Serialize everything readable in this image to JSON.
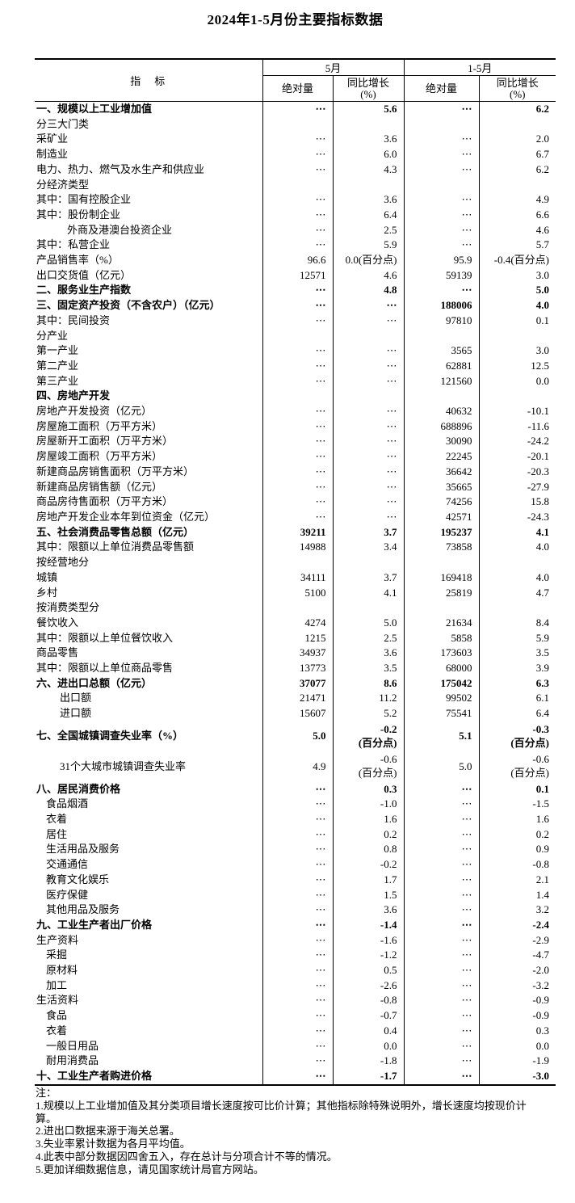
{
  "title": "2024年1-5月份主要指标数据",
  "colors": {
    "background": "#ffffff",
    "text": "#000000",
    "border": "#000000"
  },
  "table": {
    "header": {
      "indicator": "指　标",
      "may": "5月",
      "jan_may": "1-5月",
      "absolute": "绝对量",
      "yoy": "同比增长\n(%)"
    },
    "rows": [
      {
        "label": "一、规模以上工业增加值",
        "b": 1,
        "indent": 0,
        "m_abs": "⋯",
        "m_yoy": "5.6",
        "c_abs": "⋯",
        "c_yoy": "6.2"
      },
      {
        "label": "分三大门类",
        "indent": 0,
        "m_abs": "",
        "m_yoy": "",
        "c_abs": "",
        "c_yoy": ""
      },
      {
        "label": "采矿业",
        "indent": 0,
        "m_abs": "⋯",
        "m_yoy": "3.6",
        "c_abs": "⋯",
        "c_yoy": "2.0"
      },
      {
        "label": "制造业",
        "indent": 0,
        "m_abs": "⋯",
        "m_yoy": "6.0",
        "c_abs": "⋯",
        "c_yoy": "6.7"
      },
      {
        "label": "电力、热力、燃气及水生产和供应业",
        "indent": 0,
        "m_abs": "⋯",
        "m_yoy": "4.3",
        "c_abs": "⋯",
        "c_yoy": "6.2"
      },
      {
        "label": "分经济类型",
        "indent": 0,
        "m_abs": "",
        "m_yoy": "",
        "c_abs": "",
        "c_yoy": ""
      },
      {
        "label": "其中：国有控股企业",
        "indent": 0,
        "m_abs": "⋯",
        "m_yoy": "3.6",
        "c_abs": "⋯",
        "c_yoy": "4.9"
      },
      {
        "label": "其中：股份制企业",
        "indent": 0,
        "m_abs": "⋯",
        "m_yoy": "6.4",
        "c_abs": "⋯",
        "c_yoy": "6.6"
      },
      {
        "label": "外商及港澳台投资企业",
        "indent": 3,
        "m_abs": "⋯",
        "m_yoy": "2.5",
        "c_abs": "⋯",
        "c_yoy": "4.6"
      },
      {
        "label": "其中：私营企业",
        "indent": 0,
        "m_abs": "⋯",
        "m_yoy": "5.9",
        "c_abs": "⋯",
        "c_yoy": "5.7"
      },
      {
        "label": "产品销售率（%）",
        "indent": 0,
        "m_abs": "96.6",
        "m_yoy": "0.0(百分点)",
        "c_abs": "95.9",
        "c_yoy": "-0.4(百分点)"
      },
      {
        "label": "出口交货值（亿元）",
        "indent": 0,
        "m_abs": "12571",
        "m_yoy": "4.6",
        "c_abs": "59139",
        "c_yoy": "3.0"
      },
      {
        "label": "二、服务业生产指数",
        "b": 1,
        "indent": 0,
        "m_abs": "⋯",
        "m_yoy": "4.8",
        "c_abs": "⋯",
        "c_yoy": "5.0"
      },
      {
        "label": "三、固定资产投资（不含农户）（亿元）",
        "b": 1,
        "indent": 0,
        "m_abs": "⋯",
        "m_yoy": "⋯",
        "c_abs": "188006",
        "c_yoy": "4.0"
      },
      {
        "label": "其中：民间投资",
        "indent": 0,
        "m_abs": "⋯",
        "m_yoy": "⋯",
        "c_abs": "97810",
        "c_yoy": "0.1"
      },
      {
        "label": "分产业",
        "indent": 0,
        "m_abs": "",
        "m_yoy": "",
        "c_abs": "",
        "c_yoy": ""
      },
      {
        "label": "第一产业",
        "indent": 0,
        "m_abs": "⋯",
        "m_yoy": "⋯",
        "c_abs": "3565",
        "c_yoy": "3.0"
      },
      {
        "label": "第二产业",
        "indent": 0,
        "m_abs": "⋯",
        "m_yoy": "⋯",
        "c_abs": "62881",
        "c_yoy": "12.5"
      },
      {
        "label": "第三产业",
        "indent": 0,
        "m_abs": "⋯",
        "m_yoy": "⋯",
        "c_abs": "121560",
        "c_yoy": "0.0"
      },
      {
        "label": "四、房地产开发",
        "b": 1,
        "indent": 0,
        "m_abs": "",
        "m_yoy": "",
        "c_abs": "",
        "c_yoy": ""
      },
      {
        "label": "房地产开发投资（亿元）",
        "indent": 0,
        "m_abs": "⋯",
        "m_yoy": "⋯",
        "c_abs": "40632",
        "c_yoy": "-10.1"
      },
      {
        "label": "房屋施工面积（万平方米）",
        "indent": 0,
        "m_abs": "⋯",
        "m_yoy": "⋯",
        "c_abs": "688896",
        "c_yoy": "-11.6"
      },
      {
        "label": "房屋新开工面积（万平方米）",
        "indent": 0,
        "m_abs": "⋯",
        "m_yoy": "⋯",
        "c_abs": "30090",
        "c_yoy": "-24.2"
      },
      {
        "label": "房屋竣工面积（万平方米）",
        "indent": 0,
        "m_abs": "⋯",
        "m_yoy": "⋯",
        "c_abs": "22245",
        "c_yoy": "-20.1"
      },
      {
        "label": "新建商品房销售面积（万平方米）",
        "indent": 0,
        "m_abs": "⋯",
        "m_yoy": "⋯",
        "c_abs": "36642",
        "c_yoy": "-20.3"
      },
      {
        "label": "新建商品房销售额（亿元）",
        "indent": 0,
        "m_abs": "⋯",
        "m_yoy": "⋯",
        "c_abs": "35665",
        "c_yoy": "-27.9"
      },
      {
        "label": "商品房待售面积（万平方米）",
        "indent": 0,
        "m_abs": "⋯",
        "m_yoy": "⋯",
        "c_abs": "74256",
        "c_yoy": "15.8"
      },
      {
        "label": "房地产开发企业本年到位资金（亿元）",
        "indent": 0,
        "m_abs": "⋯",
        "m_yoy": "⋯",
        "c_abs": "42571",
        "c_yoy": "-24.3"
      },
      {
        "label": "五、社会消费品零售总额（亿元）",
        "b": 1,
        "indent": 0,
        "m_abs": "39211",
        "m_yoy": "3.7",
        "c_abs": "195237",
        "c_yoy": "4.1"
      },
      {
        "label": "其中：限额以上单位消费品零售额",
        "indent": 0,
        "m_abs": "14988",
        "m_yoy": "3.4",
        "c_abs": "73858",
        "c_yoy": "4.0"
      },
      {
        "label": "按经营地分",
        "indent": 0,
        "m_abs": "",
        "m_yoy": "",
        "c_abs": "",
        "c_yoy": ""
      },
      {
        "label": "城镇",
        "indent": 0,
        "m_abs": "34111",
        "m_yoy": "3.7",
        "c_abs": "169418",
        "c_yoy": "4.0"
      },
      {
        "label": "乡村",
        "indent": 0,
        "m_abs": "5100",
        "m_yoy": "4.1",
        "c_abs": "25819",
        "c_yoy": "4.7"
      },
      {
        "label": "按消费类型分",
        "indent": 0,
        "m_abs": "",
        "m_yoy": "",
        "c_abs": "",
        "c_yoy": ""
      },
      {
        "label": "餐饮收入",
        "indent": 0,
        "m_abs": "4274",
        "m_yoy": "5.0",
        "c_abs": "21634",
        "c_yoy": "8.4"
      },
      {
        "label": "其中：限额以上单位餐饮收入",
        "indent": 0,
        "m_abs": "1215",
        "m_yoy": "2.5",
        "c_abs": "5858",
        "c_yoy": "5.9"
      },
      {
        "label": "商品零售",
        "indent": 0,
        "m_abs": "34937",
        "m_yoy": "3.6",
        "c_abs": "173603",
        "c_yoy": "3.5"
      },
      {
        "label": "其中：限额以上单位商品零售",
        "indent": 0,
        "m_abs": "13773",
        "m_yoy": "3.5",
        "c_abs": "68000",
        "c_yoy": "3.9"
      },
      {
        "label": "六、进出口总额（亿元）",
        "b": 1,
        "indent": 0,
        "m_abs": "37077",
        "m_yoy": "8.6",
        "c_abs": "175042",
        "c_yoy": "6.3"
      },
      {
        "label": "出口额",
        "indent": 2,
        "m_abs": "21471",
        "m_yoy": "11.2",
        "c_abs": "99502",
        "c_yoy": "6.1"
      },
      {
        "label": "进口额",
        "indent": 2,
        "m_abs": "15607",
        "m_yoy": "5.2",
        "c_abs": "75541",
        "c_yoy": "6.4"
      },
      {
        "label": "七、全国城镇调查失业率（%）",
        "b": 1,
        "tall": 1,
        "indent": 0,
        "m_abs": "5.0",
        "m_yoy": "-0.2\n(百分点)",
        "c_abs": "5.1",
        "c_yoy": "-0.3\n(百分点)"
      },
      {
        "label": "31个大城市城镇调查失业率",
        "tall": 1,
        "indent": 2,
        "m_abs": "4.9",
        "m_yoy": "-0.6\n(百分点)",
        "c_abs": "5.0",
        "c_yoy": "-0.6\n(百分点)"
      },
      {
        "label": "八、居民消费价格",
        "b": 1,
        "indent": 0,
        "m_abs": "⋯",
        "m_yoy": "0.3",
        "c_abs": "⋯",
        "c_yoy": "0.1"
      },
      {
        "label": "食品烟酒",
        "indent": 1,
        "m_abs": "⋯",
        "m_yoy": "-1.0",
        "c_abs": "⋯",
        "c_yoy": "-1.5"
      },
      {
        "label": "衣着",
        "indent": 1,
        "m_abs": "⋯",
        "m_yoy": "1.6",
        "c_abs": "⋯",
        "c_yoy": "1.6"
      },
      {
        "label": "居住",
        "indent": 1,
        "m_abs": "⋯",
        "m_yoy": "0.2",
        "c_abs": "⋯",
        "c_yoy": "0.2"
      },
      {
        "label": "生活用品及服务",
        "indent": 1,
        "m_abs": "⋯",
        "m_yoy": "0.8",
        "c_abs": "⋯",
        "c_yoy": "0.9"
      },
      {
        "label": "交通通信",
        "indent": 1,
        "m_abs": "⋯",
        "m_yoy": "-0.2",
        "c_abs": "⋯",
        "c_yoy": "-0.8"
      },
      {
        "label": "教育文化娱乐",
        "indent": 1,
        "m_abs": "⋯",
        "m_yoy": "1.7",
        "c_abs": "⋯",
        "c_yoy": "2.1"
      },
      {
        "label": "医疗保健",
        "indent": 1,
        "m_abs": "⋯",
        "m_yoy": "1.5",
        "c_abs": "⋯",
        "c_yoy": "1.4"
      },
      {
        "label": "其他用品及服务",
        "indent": 1,
        "m_abs": "⋯",
        "m_yoy": "3.6",
        "c_abs": "⋯",
        "c_yoy": "3.2"
      },
      {
        "label": "九、工业生产者出厂价格",
        "b": 1,
        "indent": 0,
        "m_abs": "⋯",
        "m_yoy": "-1.4",
        "c_abs": "⋯",
        "c_yoy": "-2.4"
      },
      {
        "label": "生产资料",
        "indent": 0,
        "m_abs": "⋯",
        "m_yoy": "-1.6",
        "c_abs": "⋯",
        "c_yoy": "-2.9"
      },
      {
        "label": "采掘",
        "indent": 1,
        "m_abs": "⋯",
        "m_yoy": "-1.2",
        "c_abs": "⋯",
        "c_yoy": "-4.7"
      },
      {
        "label": "原材料",
        "indent": 1,
        "m_abs": "⋯",
        "m_yoy": "0.5",
        "c_abs": "⋯",
        "c_yoy": "-2.0"
      },
      {
        "label": "加工",
        "indent": 1,
        "m_abs": "⋯",
        "m_yoy": "-2.6",
        "c_abs": "⋯",
        "c_yoy": "-3.2"
      },
      {
        "label": "生活资料",
        "indent": 0,
        "m_abs": "⋯",
        "m_yoy": "-0.8",
        "c_abs": "⋯",
        "c_yoy": "-0.9"
      },
      {
        "label": "食品",
        "indent": 1,
        "m_abs": "⋯",
        "m_yoy": "-0.7",
        "c_abs": "⋯",
        "c_yoy": "-0.9"
      },
      {
        "label": "衣着",
        "indent": 1,
        "m_abs": "⋯",
        "m_yoy": "0.4",
        "c_abs": "⋯",
        "c_yoy": "0.3"
      },
      {
        "label": "一般日用品",
        "indent": 1,
        "m_abs": "⋯",
        "m_yoy": "0.0",
        "c_abs": "⋯",
        "c_yoy": "0.0"
      },
      {
        "label": "耐用消费品",
        "indent": 1,
        "m_abs": "⋯",
        "m_yoy": "-1.8",
        "c_abs": "⋯",
        "c_yoy": "-1.9"
      },
      {
        "label": "十、工业生产者购进价格",
        "b": 1,
        "indent": 0,
        "m_abs": "⋯",
        "m_yoy": "-1.7",
        "c_abs": "⋯",
        "c_yoy": "-3.0"
      }
    ]
  },
  "notes": {
    "heading": "注：",
    "items": [
      "1.规模以上工业增加值及其分类项目增长速度按可比价计算；其他指标除特殊说明外，增长速度均按现价计算。",
      "2.进出口数据来源于海关总署。",
      "3.失业率累计数据为各月平均值。",
      "4.此表中部分数据因四舍五入，存在总计与分项合计不等的情况。",
      "5.更加详细数据信息，请见国家统计局官方网站。"
    ]
  }
}
